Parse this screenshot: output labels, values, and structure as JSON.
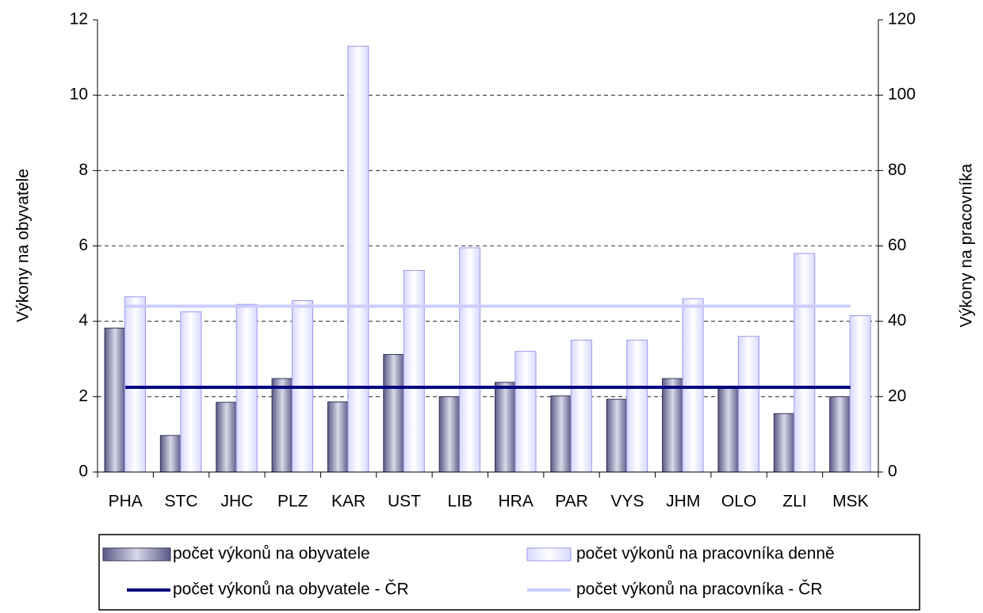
{
  "chart_data": {
    "type": "bar",
    "categories": [
      "PHA",
      "STC",
      "JHC",
      "PLZ",
      "KAR",
      "UST",
      "LIB",
      "HRA",
      "PAR",
      "VYS",
      "JHM",
      "OLO",
      "ZLI",
      "MSK"
    ],
    "series": [
      {
        "name": "počet výkonů na obyvatele",
        "color": "#666699",
        "axis": "y",
        "values": [
          3.82,
          0.97,
          1.85,
          2.48,
          1.86,
          3.12,
          2.0,
          2.38,
          2.02,
          1.93,
          2.48,
          2.27,
          1.55,
          2.0
        ]
      },
      {
        "name": "počet výkonů na pracovníka denně",
        "color": "#ccccff",
        "axis": "y2",
        "values": [
          46.5,
          42.5,
          44.5,
          45.5,
          113,
          53.5,
          59.5,
          32,
          35,
          35,
          46,
          36,
          58,
          41.5
        ]
      }
    ],
    "reference_lines": [
      {
        "name": "počet výkonů na obyvatele - ČR",
        "color": "#000080",
        "axis": "y",
        "value": 2.25
      },
      {
        "name": "počet výkonů na pracovníka - ČR",
        "color": "#ccccff",
        "axis": "y2",
        "value": 44
      }
    ],
    "ylabel": "Výkony na obyvatele",
    "y2label": "Výkony na pracovníka",
    "ylim": [
      0,
      12
    ],
    "yticks": [
      0,
      2,
      4,
      6,
      8,
      10,
      12
    ],
    "y2lim": [
      0,
      120
    ],
    "y2ticks": [
      0,
      20,
      40,
      60,
      80,
      100,
      120
    ],
    "grid": true
  }
}
